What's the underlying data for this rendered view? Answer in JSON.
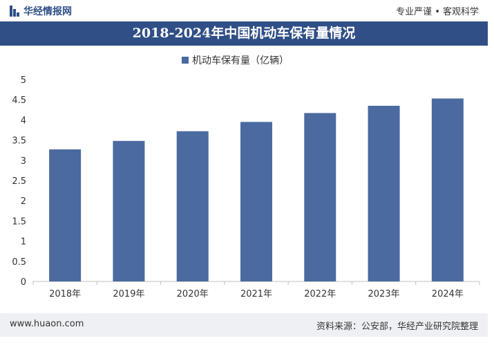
{
  "header": {
    "brand": "华经情报网",
    "slogan": "专业严谨 • 客观科学"
  },
  "colors": {
    "brand": "#2f4f86",
    "bar": "#4a6aa0"
  },
  "footer": {
    "website": "www.huaon.com",
    "source": "资料来源：公安部，华经产业研究院整理"
  },
  "chart_data": {
    "type": "bar",
    "title": "2018-2024年中国机动车保有量情况",
    "categories": [
      "2018年",
      "2019年",
      "2020年",
      "2021年",
      "2022年",
      "2023年",
      "2024年"
    ],
    "series": [
      {
        "name": "机动车保有量（亿辆）",
        "values": [
          3.27,
          3.48,
          3.72,
          3.95,
          4.17,
          4.35,
          4.53
        ]
      }
    ],
    "ylim": [
      0,
      5
    ],
    "yticks": [
      "0",
      "0.5",
      "1",
      "1.5",
      "2",
      "2.5",
      "3",
      "3.5",
      "4",
      "4.5",
      "5"
    ],
    "legend_position": "top-center",
    "grid": false
  }
}
